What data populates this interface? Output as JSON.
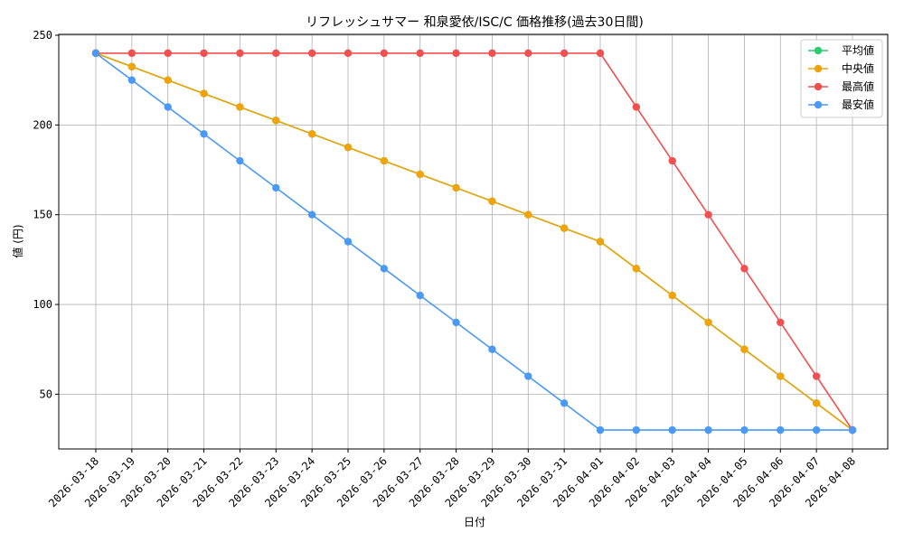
{
  "chart_data": {
    "type": "line",
    "title": "リフレッシュサマー 和泉愛依/ISC/C 価格推移(過去30日間)",
    "xlabel": "日付",
    "ylabel": "値 (円)",
    "ylim": [
      19.5,
      250.5
    ],
    "yticks": [
      50,
      100,
      150,
      200,
      250
    ],
    "grid": true,
    "legend_position": "top-right",
    "categories": [
      "2026-03-18",
      "2026-03-19",
      "2026-03-20",
      "2026-03-21",
      "2026-03-22",
      "2026-03-23",
      "2026-03-24",
      "2026-03-25",
      "2026-03-26",
      "2026-03-27",
      "2026-03-28",
      "2026-03-29",
      "2026-03-30",
      "2026-03-31",
      "2026-04-01",
      "2026-04-02",
      "2026-04-03",
      "2026-04-04",
      "2026-04-05",
      "2026-04-06",
      "2026-04-07",
      "2026-04-08"
    ],
    "series": [
      {
        "name": "平均値",
        "color": "#2ecc71",
        "values": [
          240,
          232.5,
          225,
          217.5,
          210,
          202.5,
          195,
          187.5,
          180,
          172.5,
          165,
          157.5,
          150,
          142.5,
          135,
          120,
          105,
          90,
          75,
          60,
          45,
          30
        ]
      },
      {
        "name": "中央値",
        "color": "#f0a30a",
        "values": [
          240,
          232.5,
          225,
          217.5,
          210,
          202.5,
          195,
          187.5,
          180,
          172.5,
          165,
          157.5,
          150,
          142.5,
          135,
          120,
          105,
          90,
          75,
          60,
          45,
          30
        ]
      },
      {
        "name": "最高値",
        "color": "#f05050",
        "values": [
          240,
          240,
          240,
          240,
          240,
          240,
          240,
          240,
          240,
          240,
          240,
          240,
          240,
          240,
          240,
          210,
          180,
          150,
          120,
          90,
          60,
          30
        ]
      },
      {
        "name": "最安値",
        "color": "#4a9af5",
        "values": [
          240,
          225,
          210,
          195,
          180,
          165,
          150,
          135,
          120,
          105,
          90,
          75,
          60,
          45,
          30,
          30,
          30,
          30,
          30,
          30,
          30,
          30
        ]
      }
    ]
  }
}
